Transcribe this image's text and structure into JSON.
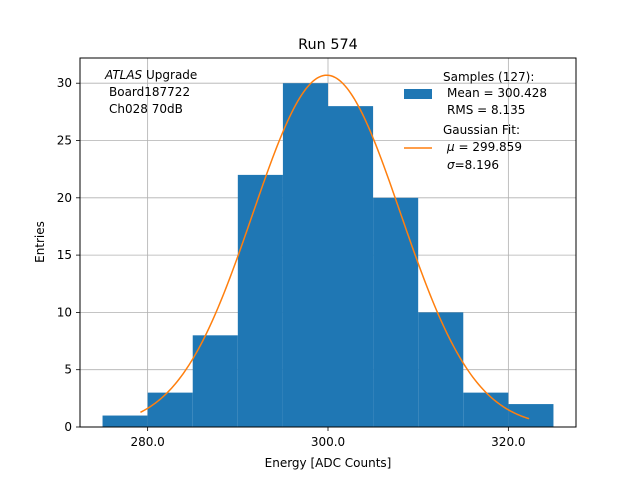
{
  "chart_data": {
    "type": "bar",
    "title": "Run 574",
    "xlabel": "Energy [ADC Counts]",
    "ylabel": "Entries",
    "xlim": [
      272.5,
      327.5
    ],
    "ylim": [
      0,
      32.2
    ],
    "grid": true,
    "x_tick_values": [
      280,
      300,
      320
    ],
    "x_tick_labels": [
      "280.0",
      "300.0",
      "320.0"
    ],
    "y_tick_values": [
      0,
      5,
      10,
      15,
      20,
      25,
      30
    ],
    "y_tick_labels": [
      "0",
      "5",
      "10",
      "15",
      "20",
      "25",
      "30"
    ],
    "annotation": {
      "italic": "ATLAS",
      "line1": " Upgrade",
      "line2": "Board187722",
      "line3": "Ch028 70dB"
    },
    "legend": {
      "placement": "upper-right",
      "samples": {
        "line1": "Samples (127):",
        "line2": "Mean = 300.428",
        "line3": "RMS = 8.135"
      },
      "fit": {
        "line1": "Gaussian Fit:",
        "mu_symbol": "μ",
        "mu_text": " = 299.859",
        "sigma_symbol": "σ",
        "sigma_text": "=8.196"
      }
    },
    "histogram": {
      "name": "Samples",
      "bin_edges": [
        275,
        280,
        285,
        290,
        295,
        300,
        305,
        310,
        315,
        320,
        325
      ],
      "counts": [
        1,
        3,
        8,
        22,
        30,
        28,
        20,
        10,
        3,
        2
      ],
      "color": "#1f77b4"
    },
    "fit": {
      "name": "Gaussian Fit",
      "type": "gaussian",
      "mu": 299.859,
      "sigma": 8.196,
      "amplitude": 30.7,
      "x_range": [
        279.2,
        322.3
      ],
      "color": "#ff7f0e"
    }
  }
}
